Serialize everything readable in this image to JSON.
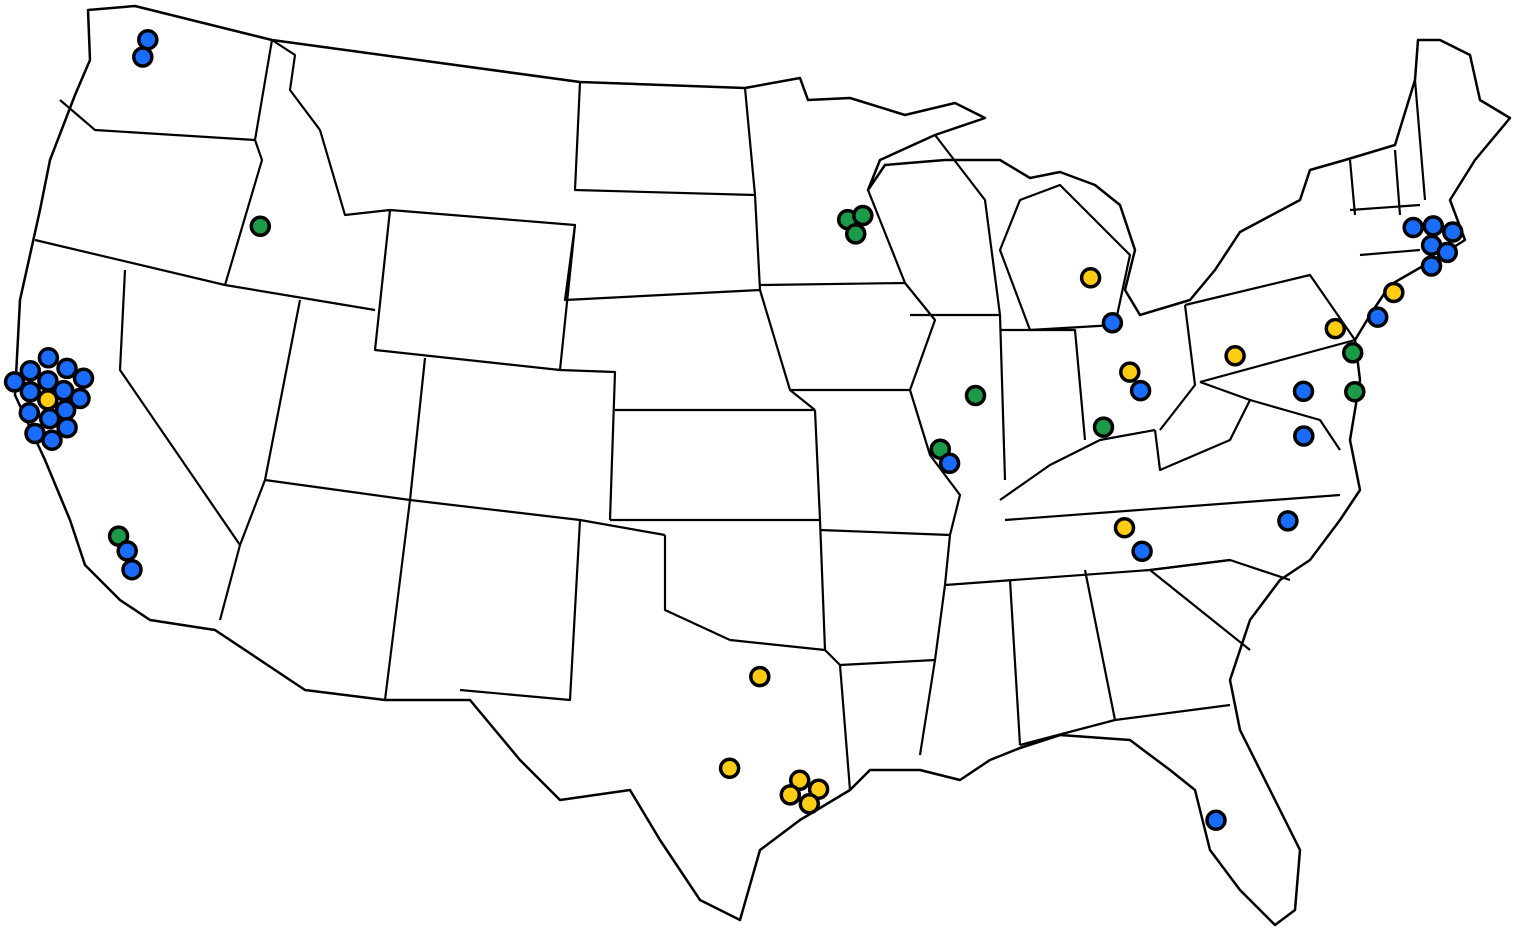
{
  "map": {
    "region": "contiguous-united-states",
    "projection": "albers",
    "category_colors": {
      "blue": "#1a6cff",
      "green": "#1b9a47",
      "yellow": "#ffcc14"
    },
    "markers": [
      {
        "lat": 47.85,
        "lon": -122.3,
        "category": "blue"
      },
      {
        "lat": 47.35,
        "lon": -122.3,
        "category": "blue"
      },
      {
        "lat": 38.69,
        "lon": -122.61,
        "category": "blue"
      },
      {
        "lat": 38.55,
        "lon": -121.87,
        "category": "blue"
      },
      {
        "lat": 38.41,
        "lon": -121.21,
        "category": "blue"
      },
      {
        "lat": 38.21,
        "lon": -123.1,
        "category": "blue"
      },
      {
        "lat": 38.08,
        "lon": -122.4,
        "category": "blue"
      },
      {
        "lat": 37.94,
        "lon": -121.77,
        "category": "blue"
      },
      {
        "lat": 37.85,
        "lon": -121.14,
        "category": "blue"
      },
      {
        "lat": 37.8,
        "lon": -123.52,
        "category": "blue"
      },
      {
        "lat": 37.66,
        "lon": -122.89,
        "category": "blue"
      },
      {
        "lat": 37.44,
        "lon": -121.52,
        "category": "blue"
      },
      {
        "lat": 37.1,
        "lon": -122.72,
        "category": "blue"
      },
      {
        "lat": 37.1,
        "lon": -121.98,
        "category": "blue"
      },
      {
        "lat": 36.99,
        "lon": -121.31,
        "category": "blue"
      },
      {
        "lat": 36.6,
        "lon": -122.33,
        "category": "blue"
      },
      {
        "lat": 36.55,
        "lon": -121.7,
        "category": "blue"
      },
      {
        "lat": 37.58,
        "lon": -122.22,
        "category": "yellow"
      },
      {
        "lat": 34.47,
        "lon": -118.67,
        "category": "green"
      },
      {
        "lat": 34.13,
        "lon": -118.27,
        "category": "blue"
      },
      {
        "lat": 33.66,
        "lon": -117.97,
        "category": "blue"
      },
      {
        "lat": 43.6,
        "lon": -116.2,
        "category": "green"
      },
      {
        "lat": 45.3,
        "lon": -93.5,
        "category": "green"
      },
      {
        "lat": 45.4,
        "lon": -92.9,
        "category": "green"
      },
      {
        "lat": 44.9,
        "lon": -93.2,
        "category": "green"
      },
      {
        "lat": 40.3,
        "lon": -89.0,
        "category": "green"
      },
      {
        "lat": 38.9,
        "lon": -90.4,
        "category": "green"
      },
      {
        "lat": 38.5,
        "lon": -90.1,
        "category": "blue"
      },
      {
        "lat": 43.2,
        "lon": -84.3,
        "category": "yellow"
      },
      {
        "lat": 41.9,
        "lon": -83.7,
        "category": "blue"
      },
      {
        "lat": 40.5,
        "lon": -83.3,
        "category": "yellow"
      },
      {
        "lat": 39.96,
        "lon": -83.0,
        "category": "blue"
      },
      {
        "lat": 39.1,
        "lon": -84.5,
        "category": "green"
      },
      {
        "lat": 40.5,
        "lon": -79.4,
        "category": "yellow"
      },
      {
        "lat": 40.7,
        "lon": -75.6,
        "category": "yellow"
      },
      {
        "lat": 41.3,
        "lon": -73.2,
        "category": "yellow"
      },
      {
        "lat": 40.75,
        "lon": -73.99,
        "category": "blue"
      },
      {
        "lat": 39.95,
        "lon": -75.17,
        "category": "green"
      },
      {
        "lat": 38.9,
        "lon": -75.4,
        "category": "green"
      },
      {
        "lat": 39.2,
        "lon": -77.2,
        "category": "blue"
      },
      {
        "lat": 38.0,
        "lon": -77.5,
        "category": "blue"
      },
      {
        "lat": 35.8,
        "lon": -78.6,
        "category": "blue"
      },
      {
        "lat": 36.3,
        "lon": -84.2,
        "category": "yellow"
      },
      {
        "lat": 35.6,
        "lon": -83.7,
        "category": "blue"
      },
      {
        "lat": 28.0,
        "lon": -82.5,
        "category": "blue"
      },
      {
        "lat": 42.9,
        "lon": -71.9,
        "category": "blue"
      },
      {
        "lat": 42.8,
        "lon": -71.15,
        "category": "blue"
      },
      {
        "lat": 42.5,
        "lon": -70.5,
        "category": "blue"
      },
      {
        "lat": 42.3,
        "lon": -71.4,
        "category": "blue"
      },
      {
        "lat": 42.0,
        "lon": -70.9,
        "category": "blue"
      },
      {
        "lat": 41.75,
        "lon": -71.6,
        "category": "blue"
      },
      {
        "lat": 32.8,
        "lon": -96.8,
        "category": "yellow"
      },
      {
        "lat": 30.27,
        "lon": -97.74,
        "category": "yellow"
      },
      {
        "lat": 29.95,
        "lon": -95.5,
        "category": "yellow"
      },
      {
        "lat": 29.7,
        "lon": -94.9,
        "category": "yellow"
      },
      {
        "lat": 29.55,
        "lon": -95.8,
        "category": "yellow"
      },
      {
        "lat": 29.3,
        "lon": -95.2,
        "category": "yellow"
      }
    ]
  }
}
